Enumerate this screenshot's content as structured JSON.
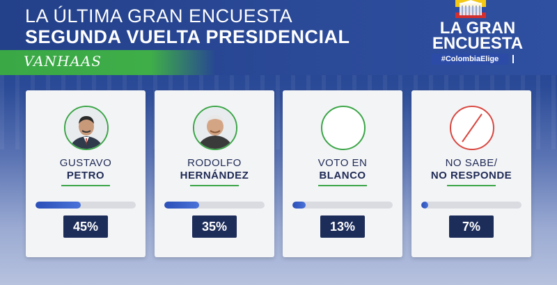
{
  "header": {
    "title_line1": "LA ÚLTIMA GRAN ENCUESTA",
    "title_line2": "SEGUNDA VUELTA PRESIDENCIAL",
    "pollster_logo": "VANHAAS"
  },
  "brand": {
    "line1": "LA GRAN",
    "line2": "ENCUESTA",
    "hashtag": "#ColombiaElige"
  },
  "colors": {
    "accent_green": "#3aa546",
    "header_blue": "#23408a",
    "badge_navy": "#1d2d5a",
    "bar_blue": "#2a4fb8"
  },
  "chart_data": {
    "type": "bar",
    "categories": [
      "GUSTAVO PETRO",
      "RODOLFO HERNÁNDEZ",
      "VOTO EN BLANCO",
      "NO SABE/ NO RESPONDE"
    ],
    "values": [
      45,
      35,
      13,
      7
    ],
    "unit": "%",
    "ylim": [
      0,
      100
    ],
    "title": "LA ÚLTIMA GRAN ENCUESTA SEGUNDA VUELTA PRESIDENCIAL",
    "xlabel": "",
    "ylabel": "",
    "grid": false
  },
  "cards": [
    {
      "line1": "GUSTAVO",
      "line2": "PETRO",
      "value": 45,
      "value_label": "45%",
      "icon": "candidate-photo-icon"
    },
    {
      "line1": "RODOLFO",
      "line2": "HERNÁNDEZ",
      "value": 35,
      "value_label": "35%",
      "icon": "candidate-photo-icon"
    },
    {
      "line1": "VOTO EN",
      "line2": "BLANCO",
      "value": 13,
      "value_label": "13%",
      "icon": "empty-circle-icon"
    },
    {
      "line1": "NO SABE/",
      "line2": "NO RESPONDE",
      "value": 7,
      "value_label": "7%",
      "icon": "slashed-circle-icon"
    }
  ]
}
